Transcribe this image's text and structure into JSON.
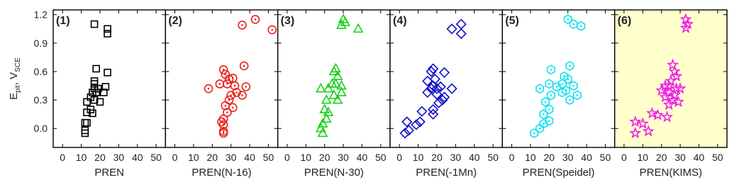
{
  "chart_data": [
    {
      "type": "scatter",
      "label": "(1)",
      "x_label": "PREN",
      "y_label": [
        "E",
        "pit",
        ", V",
        "SCE"
      ],
      "marker": "square",
      "color": "#000000",
      "background": "#ffffff",
      "xlim": [
        -5,
        55
      ],
      "xticks": [
        0,
        10,
        20,
        30,
        40,
        50
      ],
      "ylim": [
        -0.2,
        1.25
      ],
      "yticks": [
        {
          "value": 0,
          "label": "0.0"
        },
        0.3,
        0.6,
        0.9,
        1.2
      ],
      "x": [
        17,
        24,
        24,
        18,
        24,
        17,
        17,
        17,
        19,
        16,
        18,
        22,
        23,
        15,
        17,
        13,
        20,
        15,
        13,
        16,
        12,
        13,
        12,
        12
      ],
      "values": [
        1.1,
        1.05,
        1.0,
        0.63,
        0.59,
        0.5,
        0.47,
        0.42,
        0.42,
        0.38,
        0.38,
        0.38,
        0.44,
        0.33,
        0.3,
        0.28,
        0.28,
        0.2,
        0.17,
        0.16,
        0.06,
        0.06,
        -0.02,
        -0.05
      ]
    },
    {
      "type": "scatter",
      "label": "(2)",
      "x_label": "PREN(N-16)",
      "marker": "circle",
      "color": "#e8201c",
      "background": "#ffffff",
      "xlim": [
        -5,
        55
      ],
      "xticks": [
        0,
        10,
        20,
        30,
        40,
        50
      ],
      "ylim": [
        -0.2,
        1.25
      ],
      "x": [
        43,
        36,
        52,
        26,
        37,
        27,
        18,
        31,
        29,
        24,
        28,
        32,
        38,
        33,
        36,
        30,
        29,
        27,
        31,
        28,
        26,
        25,
        26,
        26,
        26
      ],
      "values": [
        1.15,
        1.09,
        1.04,
        0.62,
        0.66,
        0.57,
        0.42,
        0.53,
        0.52,
        0.47,
        0.47,
        0.45,
        0.44,
        0.38,
        0.35,
        0.35,
        0.3,
        0.24,
        0.22,
        0.17,
        0.1,
        0.07,
        0.04,
        -0.03,
        -0.05
      ]
    },
    {
      "type": "scatter",
      "label": "(3)",
      "x_label": "PREN(N-30)",
      "marker": "triangle",
      "color": "#18d018",
      "background": "#ffffff",
      "xlim": [
        -5,
        55
      ],
      "xticks": [
        0,
        10,
        20,
        30,
        40,
        50
      ],
      "ylim": [
        -0.2,
        1.25
      ],
      "x": [
        30,
        31,
        29,
        38,
        26,
        25,
        27,
        18,
        24,
        26,
        29,
        22,
        29,
        25,
        21,
        27,
        20,
        22,
        21,
        19,
        18,
        19
      ],
      "values": [
        1.15,
        1.12,
        1.09,
        1.05,
        0.63,
        0.6,
        0.55,
        0.42,
        0.47,
        0.47,
        0.45,
        0.42,
        0.38,
        0.35,
        0.3,
        0.3,
        0.2,
        0.17,
        0.1,
        0.05,
        0.0,
        -0.05
      ]
    },
    {
      "type": "scatter",
      "label": "(4)",
      "x_label": "PREN(-1Mn)",
      "marker": "diamond",
      "color": "#1010c8",
      "background": "#ffffff",
      "xlim": [
        -5,
        55
      ],
      "xticks": [
        0,
        10,
        20,
        30,
        40,
        50
      ],
      "ylim": [
        -0.2,
        1.25
      ],
      "x": [
        28,
        33,
        33,
        18,
        17,
        24,
        15,
        19,
        18,
        17,
        20,
        28,
        22,
        15,
        20,
        24,
        23,
        21,
        18,
        12,
        18,
        11,
        4,
        9,
        5,
        3
      ],
      "values": [
        1.05,
        1.1,
        1.0,
        0.63,
        0.6,
        0.59,
        0.5,
        0.52,
        0.45,
        0.42,
        0.42,
        0.42,
        0.44,
        0.38,
        0.36,
        0.33,
        0.3,
        0.27,
        0.2,
        0.18,
        0.15,
        0.07,
        0.07,
        0.04,
        -0.02,
        -0.05
      ]
    },
    {
      "type": "scatter",
      "label": "(5)",
      "x_label": "PREN(Speidel)",
      "marker": "hexagon",
      "color": "#14e0f0",
      "background": "#ffffff",
      "xlim": [
        -5,
        55
      ],
      "xticks": [
        0,
        10,
        20,
        30,
        40,
        50
      ],
      "ylim": [
        -0.2,
        1.25
      ],
      "x": [
        30,
        33,
        37,
        21,
        31,
        28,
        30,
        20,
        27,
        24,
        15,
        33,
        29,
        27,
        35,
        21,
        31,
        18,
        20,
        17,
        20,
        17,
        15,
        12
      ],
      "values": [
        1.15,
        1.1,
        1.08,
        0.62,
        0.66,
        0.55,
        0.52,
        0.47,
        0.47,
        0.44,
        0.42,
        0.45,
        0.4,
        0.38,
        0.35,
        0.35,
        0.3,
        0.28,
        0.2,
        0.15,
        0.08,
        0.05,
        0.0,
        -0.05
      ]
    },
    {
      "type": "scatter",
      "label": "(6)",
      "x_label": "PREN(KIMS)",
      "marker": "star",
      "color": "#ee18ee",
      "background": "#ffffcc",
      "xlim": [
        -5,
        55
      ],
      "xticks": [
        0,
        10,
        20,
        30,
        40,
        50
      ],
      "ylim": [
        -0.2,
        1.25
      ],
      "x": [
        33,
        34,
        33,
        26,
        27,
        28,
        25,
        22,
        24,
        28,
        30,
        20,
        24,
        27,
        22,
        26,
        29,
        24,
        15,
        18,
        23,
        6,
        10,
        13,
        6
      ],
      "values": [
        1.15,
        1.1,
        1.06,
        0.67,
        0.6,
        0.55,
        0.5,
        0.45,
        0.45,
        0.42,
        0.42,
        0.4,
        0.38,
        0.35,
        0.33,
        0.3,
        0.28,
        0.25,
        0.16,
        0.14,
        0.12,
        0.07,
        0.05,
        -0.03,
        -0.05
      ]
    }
  ]
}
